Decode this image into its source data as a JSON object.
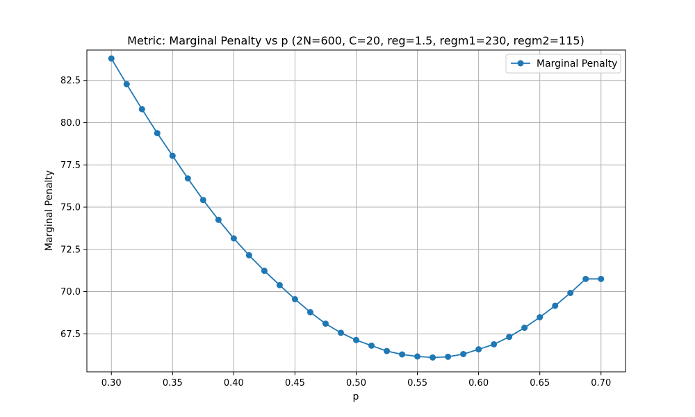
{
  "chart_data": {
    "type": "line",
    "title": "Metric: Marginal Penalty vs p (2N=600, C=20, reg=1.5, regm1=230, regm2=115)",
    "xlabel": "p",
    "ylabel": "Marginal Penalty",
    "xlim": [
      0.28,
      0.72
    ],
    "ylim": [
      65.25,
      84.3
    ],
    "xticks": [
      0.3,
      0.35,
      0.4,
      0.45,
      0.5,
      0.55,
      0.6,
      0.65,
      0.7
    ],
    "xtick_labels": [
      "0.30",
      "0.35",
      "0.40",
      "0.45",
      "0.50",
      "0.55",
      "0.60",
      "0.65",
      "0.70"
    ],
    "yticks": [
      67.5,
      70.0,
      72.5,
      75.0,
      77.5,
      80.0,
      82.5
    ],
    "ytick_labels": [
      "67.5",
      "70.0",
      "72.5",
      "75.0",
      "77.5",
      "80.0",
      "82.5"
    ],
    "grid": true,
    "legend": "top-right",
    "series": [
      {
        "name": "Marginal Penalty",
        "color": "#1f77b4",
        "marker": "circle",
        "x": [
          0.3,
          0.3125,
          0.325,
          0.3375,
          0.35,
          0.3625,
          0.375,
          0.3875,
          0.4,
          0.4125,
          0.425,
          0.4375,
          0.45,
          0.4625,
          0.475,
          0.4875,
          0.5,
          0.5125,
          0.525,
          0.5375,
          0.55,
          0.5625,
          0.575,
          0.5875,
          0.6,
          0.6125,
          0.625,
          0.6375,
          0.65,
          0.6625,
          0.675,
          0.6875,
          0.7
        ],
        "y": [
          83.8,
          82.28,
          80.8,
          79.38,
          78.04,
          76.7,
          75.42,
          74.25,
          73.15,
          72.15,
          71.23,
          70.38,
          69.55,
          68.78,
          68.1,
          67.56,
          67.13,
          66.8,
          66.48,
          66.28,
          66.16,
          66.1,
          66.14,
          66.3,
          66.58,
          66.88,
          67.32,
          67.86,
          68.48,
          69.16,
          69.92,
          70.75,
          70.75
        ]
      }
    ]
  }
}
